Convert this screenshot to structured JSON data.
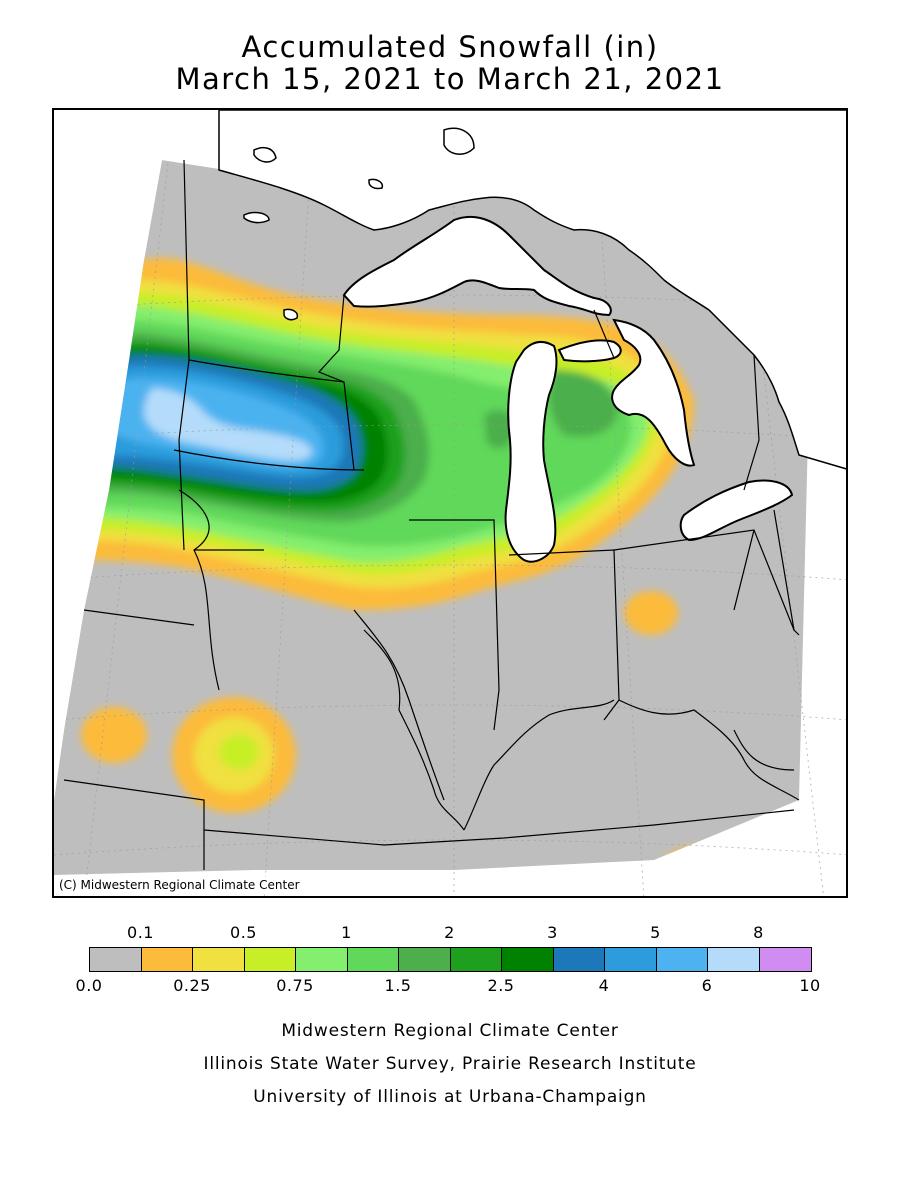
{
  "title": {
    "line1": "Accumulated Snowfall (in)",
    "line2": "March 15, 2021 to March 21, 2021"
  },
  "map": {
    "copyright": "(C) Midwestern Regional Climate Center",
    "background_color": "#bebebe",
    "outside_color": "#ffffff"
  },
  "legend": {
    "top_labels": [
      "0.1",
      "0.5",
      "1",
      "2",
      "3",
      "5",
      "8"
    ],
    "bottom_labels": [
      "0.0",
      "0.25",
      "0.75",
      "1.5",
      "2.5",
      "4",
      "6",
      "10"
    ],
    "colors": [
      "#bebebe",
      "#fcbb3a",
      "#f0e040",
      "#c8ee28",
      "#84ee6e",
      "#60d85a",
      "#4caf4c",
      "#1ea01e",
      "#008200",
      "#1c78b8",
      "#2c9cdc",
      "#4cb2f0",
      "#b4dcfa",
      "#d08cf0"
    ]
  },
  "credits": {
    "line1": "Midwestern Regional Climate Center",
    "line2": "Illinois State Water Survey, Prairie Research Institute",
    "line3": "University of Illinois at Urbana-Champaign"
  }
}
